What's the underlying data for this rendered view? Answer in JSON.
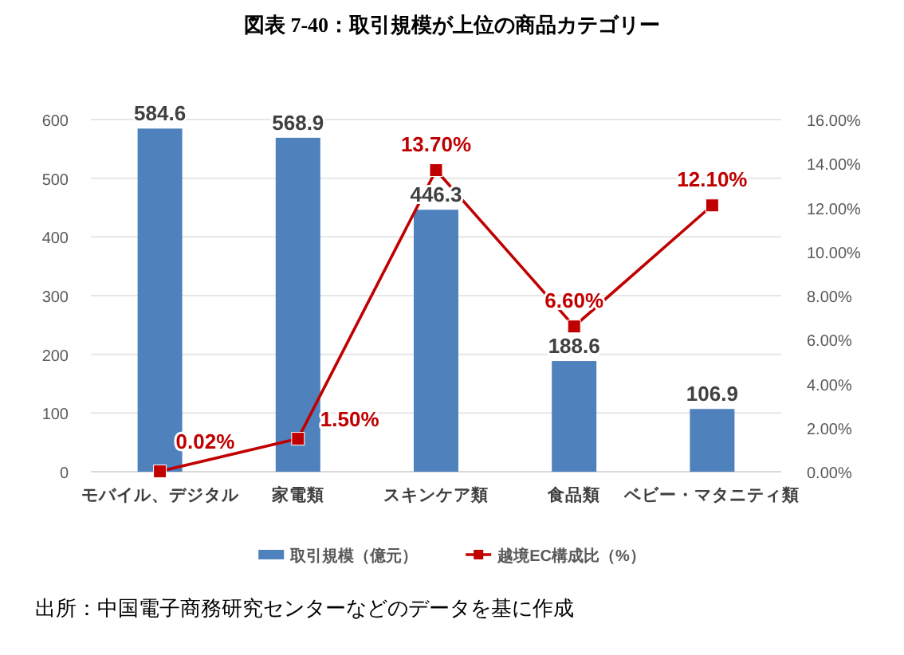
{
  "chart_data": {
    "type": "bar",
    "title": "図表 7-40：取引規模が上位の商品カテゴリー",
    "categories": [
      "モバイル、デジタル",
      "家電類",
      "スキンケア類",
      "食品類",
      "ベビー・マタニティ類"
    ],
    "series": [
      {
        "name": "取引規模（億元）",
        "color": "#4f81bd",
        "values": [
          584.6,
          568.9,
          446.3,
          188.6,
          106.9
        ],
        "value_labels": [
          "584.6",
          "568.9",
          "446.3",
          "188.6",
          "106.9"
        ]
      },
      {
        "name": "越境EC構成比（%）",
        "type": "line",
        "axis": "y2",
        "color": "#c00000",
        "marker": "square",
        "values": [
          0.02,
          1.5,
          13.7,
          6.6,
          12.1
        ],
        "value_labels": [
          "0.02%",
          "1.50%",
          "13.70%",
          "6.60%",
          "12.10%"
        ]
      }
    ],
    "ylim": [
      0,
      600
    ],
    "yticks": [
      0,
      100,
      200,
      300,
      400,
      500,
      600
    ],
    "y2lim": [
      0,
      16
    ],
    "y2ticks": [
      {
        "value": 0,
        "label": "0.00%"
      },
      {
        "value": 2,
        "label": "2.00%"
      },
      {
        "value": 4,
        "label": "4.00%"
      },
      {
        "value": 6,
        "label": "6.00%"
      },
      {
        "value": 8,
        "label": "8.00%"
      },
      {
        "value": 10,
        "label": "10.00%"
      },
      {
        "value": 12,
        "label": "12.00%"
      },
      {
        "value": 14,
        "label": "14.00%"
      },
      {
        "value": 16,
        "label": "16.00%"
      }
    ],
    "grid": "y",
    "legend": "bottom",
    "annotations": [
      "出所：中国電子商務研究センターなどのデータを基に作成"
    ]
  }
}
